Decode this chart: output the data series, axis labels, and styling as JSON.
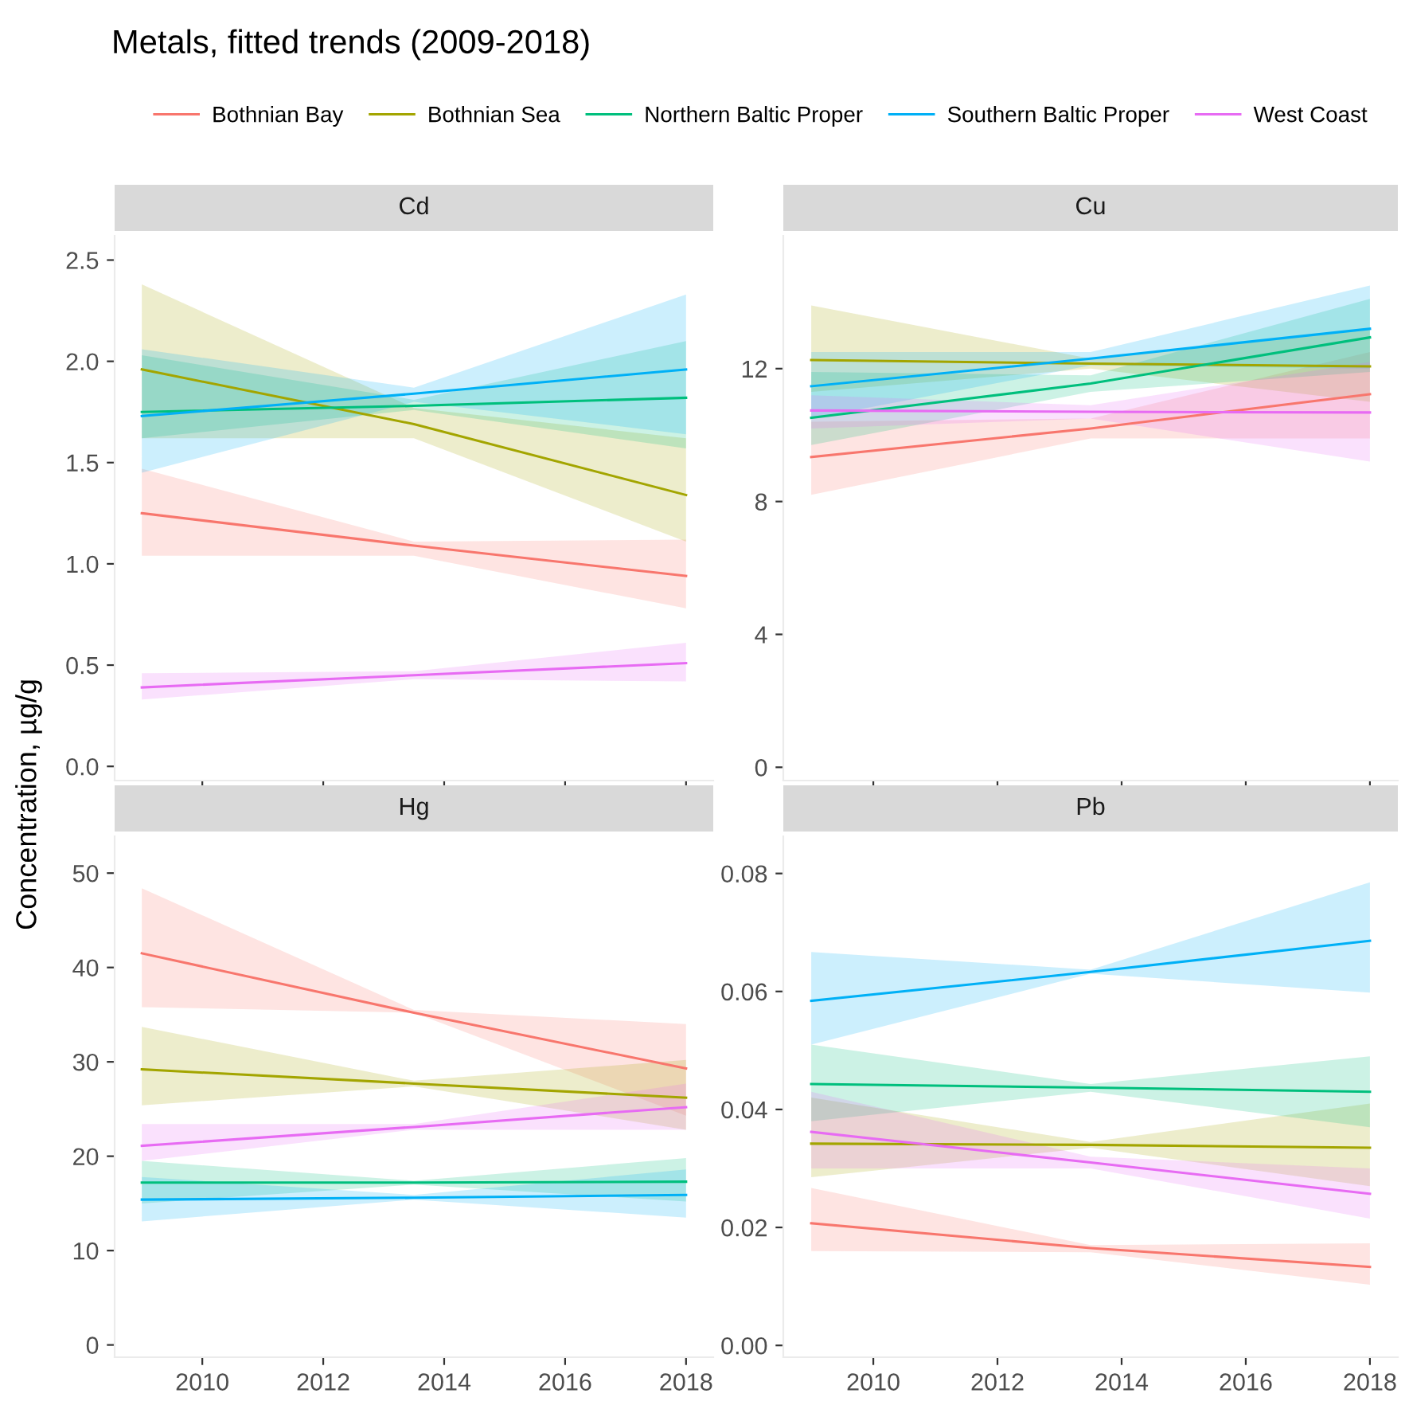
{
  "chart_data": [
    {
      "type": "line",
      "title": "Metals, fitted trends (2009-2018)",
      "subtitle": "Cd",
      "ylabel": "Concentration, µg/g",
      "legend": "top",
      "grid": false,
      "tick_labels": "y",
      "xlim": [
        2008.55,
        2018.45
      ],
      "xticks": [
        2010,
        2012,
        2014,
        2016,
        2018
      ],
      "ylim": [
        -0.07,
        2.62
      ],
      "yticks": [
        {
          "value": 0,
          "label": "0.0"
        },
        {
          "value": 0.5,
          "label": "0.5"
        },
        {
          "value": 1,
          "label": "1.0"
        },
        {
          "value": 1.5,
          "label": "1.5"
        },
        {
          "value": 2,
          "label": "2.0"
        },
        {
          "value": 2.5,
          "label": "2.5"
        }
      ],
      "x": [
        2009,
        2013.5,
        2018
      ],
      "series": [
        {
          "name": "Bothnian Bay",
          "color": "#f8766d",
          "values": [
            1.25,
            1.09,
            0.94
          ],
          "lower": [
            1.04,
            1.04,
            0.78
          ],
          "upper": [
            1.47,
            1.11,
            1.12
          ]
        },
        {
          "name": "Bothnian Sea",
          "color": "#a3a500",
          "values": [
            1.96,
            1.69,
            1.34
          ],
          "lower": [
            1.62,
            1.62,
            1.11
          ],
          "upper": [
            2.38,
            1.77,
            1.62
          ]
        },
        {
          "name": "Northern Baltic Proper",
          "color": "#00bf7d",
          "values": [
            1.75,
            1.78,
            1.82
          ],
          "lower": [
            1.62,
            1.76,
            1.57
          ],
          "upper": [
            2.03,
            1.81,
            2.1
          ]
        },
        {
          "name": "Southern Baltic Proper",
          "color": "#00b0f6",
          "values": [
            1.73,
            1.84,
            1.96
          ],
          "lower": [
            1.45,
            1.8,
            1.64
          ],
          "upper": [
            2.06,
            1.87,
            2.33
          ]
        },
        {
          "name": "West Coast",
          "color": "#e76bf3",
          "values": [
            0.39,
            0.45,
            0.51
          ],
          "lower": [
            0.33,
            0.43,
            0.42
          ],
          "upper": [
            0.46,
            0.47,
            0.61
          ]
        }
      ]
    },
    {
      "type": "line",
      "subtitle": "Cu",
      "grid": false,
      "tick_labels": "y",
      "xlim": [
        2008.55,
        2018.45
      ],
      "xticks": [
        2010,
        2012,
        2014,
        2016,
        2018
      ],
      "ylim": [
        -0.4,
        16.0
      ],
      "yticks": [
        0,
        4,
        8,
        12
      ],
      "x": [
        2009,
        2013.5,
        2018
      ],
      "series": [
        {
          "color": "#f8766d",
          "values": [
            9.34,
            10.2,
            11.23
          ],
          "lower": [
            8.2,
            9.9,
            9.9
          ],
          "upper": [
            10.4,
            10.5,
            12.5
          ]
        },
        {
          "color": "#a3a500",
          "values": [
            12.26,
            12.15,
            12.07
          ],
          "lower": [
            11.3,
            12.0,
            11.0
          ],
          "upper": [
            13.9,
            12.3,
            13.2
          ]
        },
        {
          "color": "#00bf7d",
          "values": [
            10.52,
            11.55,
            12.94
          ],
          "lower": [
            9.7,
            11.3,
            11.9
          ],
          "upper": [
            11.9,
            11.8,
            14.1
          ]
        },
        {
          "color": "#00b0f6",
          "values": [
            11.47,
            12.3,
            13.2
          ],
          "lower": [
            10.5,
            12.1,
            12.0
          ],
          "upper": [
            12.5,
            12.5,
            14.5
          ]
        },
        {
          "color": "#e76bf3",
          "values": [
            10.74,
            10.7,
            10.68
          ],
          "lower": [
            10.2,
            10.5,
            9.2
          ],
          "upper": [
            11.2,
            10.9,
            12.2
          ]
        }
      ]
    },
    {
      "type": "line",
      "subtitle": "Hg",
      "grid": false,
      "xlim": [
        2008.55,
        2018.45
      ],
      "xticks": [
        2010,
        2012,
        2014,
        2016,
        2018
      ],
      "ylim": [
        -1.3,
        53.9
      ],
      "yticks": [
        0,
        10,
        20,
        30,
        40,
        50
      ],
      "x": [
        2009,
        2013.5,
        2018
      ],
      "series": [
        {
          "color": "#f8766d",
          "values": [
            41.5,
            35.2,
            29.3
          ],
          "lower": [
            35.8,
            35.2,
            24.3
          ],
          "upper": [
            48.4,
            35.5,
            34.0
          ]
        },
        {
          "color": "#a3a500",
          "values": [
            29.2,
            27.7,
            26.2
          ],
          "lower": [
            25.4,
            27.4,
            22.8
          ],
          "upper": [
            33.7,
            28.0,
            30.2
          ]
        },
        {
          "color": "#00bf7d",
          "values": [
            17.2,
            17.2,
            17.3
          ],
          "lower": [
            15.0,
            17.0,
            15.2
          ],
          "upper": [
            19.5,
            17.4,
            19.8
          ]
        },
        {
          "color": "#00b0f6",
          "values": [
            15.4,
            15.6,
            15.9
          ],
          "lower": [
            13.1,
            15.4,
            13.5
          ],
          "upper": [
            17.8,
            15.9,
            18.6
          ]
        },
        {
          "color": "#e76bf3",
          "values": [
            21.1,
            23.1,
            25.2
          ],
          "lower": [
            19.5,
            22.8,
            22.8
          ],
          "upper": [
            23.4,
            23.4,
            27.7
          ]
        }
      ]
    },
    {
      "type": "line",
      "subtitle": "Pb",
      "grid": false,
      "xlim": [
        2008.55,
        2018.45
      ],
      "xticks": [
        2010,
        2012,
        2014,
        2016,
        2018
      ],
      "ylim": [
        -0.002,
        0.0863
      ],
      "yticks": [
        {
          "value": 0,
          "label": "0.00"
        },
        {
          "value": 0.02,
          "label": "0.02"
        },
        {
          "value": 0.04,
          "label": "0.04"
        },
        {
          "value": 0.06,
          "label": "0.06"
        },
        {
          "value": 0.08,
          "label": "0.08"
        }
      ],
      "x": [
        2009,
        2013.5,
        2018
      ],
      "series": [
        {
          "color": "#f8766d",
          "values": [
            0.0207,
            0.0165,
            0.0133
          ],
          "lower": [
            0.016,
            0.0158,
            0.0103
          ],
          "upper": [
            0.0267,
            0.017,
            0.0173
          ]
        },
        {
          "color": "#a3a500",
          "values": [
            0.0342,
            0.034,
            0.0335
          ],
          "lower": [
            0.0285,
            0.0335,
            0.027
          ],
          "upper": [
            0.042,
            0.0345,
            0.041
          ]
        },
        {
          "color": "#00bf7d",
          "values": [
            0.0443,
            0.0437,
            0.043
          ],
          "lower": [
            0.038,
            0.043,
            0.037
          ],
          "upper": [
            0.051,
            0.0443,
            0.049
          ]
        },
        {
          "color": "#00b0f6",
          "values": [
            0.0584,
            0.0633,
            0.0686
          ],
          "lower": [
            0.051,
            0.063,
            0.0598
          ],
          "upper": [
            0.0667,
            0.0637,
            0.0785
          ]
        },
        {
          "color": "#e76bf3",
          "values": [
            0.0362,
            0.031,
            0.0257
          ],
          "lower": [
            0.03,
            0.03,
            0.0215
          ],
          "upper": [
            0.043,
            0.032,
            0.03
          ]
        }
      ]
    }
  ]
}
